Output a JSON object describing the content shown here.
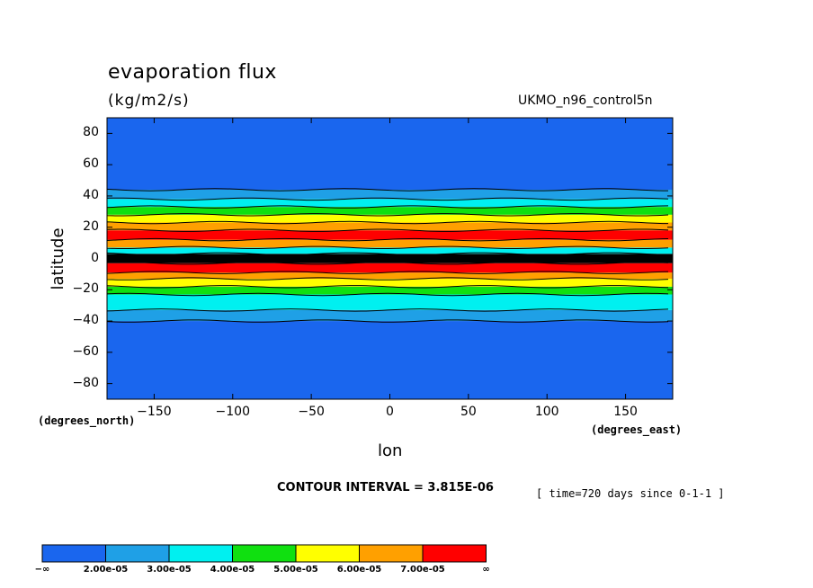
{
  "chart_data": {
    "type": "heatmap",
    "title": "evaporation flux",
    "units": "(kg/m2/s)",
    "dataset": "UKMO_n96_control5n",
    "xlabel": "lon",
    "ylabel": "latitude",
    "x_units": "(degrees_east)",
    "y_units": "(degrees_north)",
    "xlim": [
      -180,
      180
    ],
    "ylim": [
      -90,
      90
    ],
    "x_ticks": [
      -150,
      -100,
      -50,
      0,
      50,
      100,
      150
    ],
    "y_ticks": [
      80,
      60,
      40,
      20,
      0,
      -20,
      -40,
      -60,
      -80
    ],
    "x_tick_labels": [
      "−150",
      "−100",
      "−50",
      "0",
      "50",
      "100",
      "150"
    ],
    "y_tick_labels": [
      "80",
      "60",
      "40",
      "20",
      "0",
      "−20",
      "−40",
      "−60",
      "−80"
    ],
    "contour_interval": "CONTOUR INTERVAL = 3.815E-06",
    "time": "[ time=720 days since 0-1-1 ]",
    "colorbar": {
      "levels": [
        "−∞",
        "2.00e-05",
        "3.00e-05",
        "4.00e-05",
        "5.00e-05",
        "6.00e-05",
        "7.00e-05",
        "∞"
      ],
      "colors": [
        "#1a66ee",
        "#1fa0e6",
        "#00f0f0",
        "#10e010",
        "#ffff00",
        "#ffa000",
        "#ff0000"
      ]
    },
    "latitude_bands": [
      {
        "lat": [
          -90,
          -40
        ],
        "class": 0
      },
      {
        "lat": [
          -40,
          -33
        ],
        "class": 1
      },
      {
        "lat": [
          -33,
          -23
        ],
        "class": 2
      },
      {
        "lat": [
          -23,
          -18
        ],
        "class": 3
      },
      {
        "lat": [
          -18,
          -13
        ],
        "class": 4
      },
      {
        "lat": [
          -13,
          -9
        ],
        "class": 5
      },
      {
        "lat": [
          -9,
          -3
        ],
        "class": 6
      },
      {
        "lat": [
          -3,
          3
        ],
        "class": 7
      },
      {
        "lat": [
          3,
          7
        ],
        "class": 2
      },
      {
        "lat": [
          7,
          12
        ],
        "class": 5
      },
      {
        "lat": [
          12,
          18
        ],
        "class": 6
      },
      {
        "lat": [
          18,
          23
        ],
        "class": 5
      },
      {
        "lat": [
          23,
          28
        ],
        "class": 4
      },
      {
        "lat": [
          28,
          33
        ],
        "class": 3
      },
      {
        "lat": [
          33,
          38
        ],
        "class": 2
      },
      {
        "lat": [
          38,
          44
        ],
        "class": 1
      },
      {
        "lat": [
          44,
          90
        ],
        "class": 0
      }
    ]
  }
}
